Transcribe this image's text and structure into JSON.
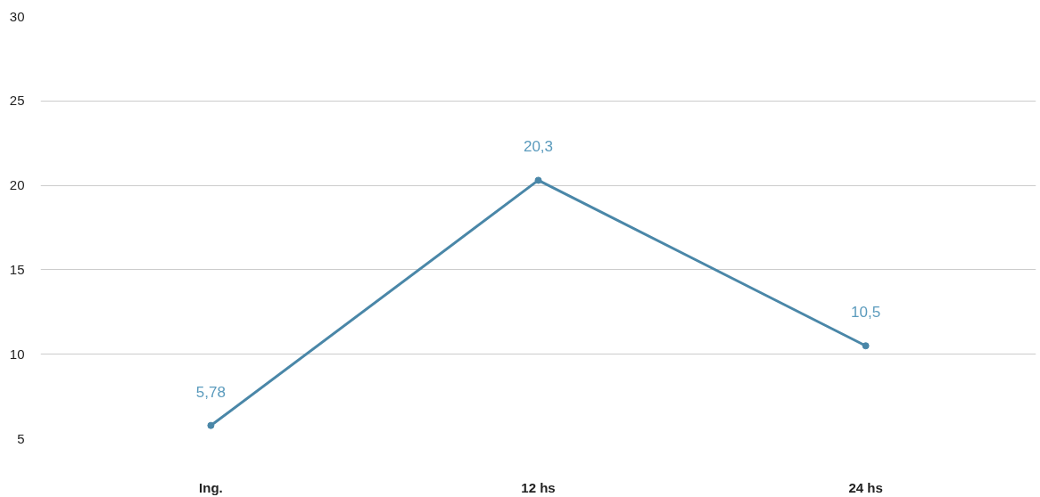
{
  "chart_data": {
    "type": "line",
    "categories": [
      "Ing.",
      "12 hs",
      "24 hs"
    ],
    "series": [
      {
        "color": "#4a87a8",
        "values": [
          5.78,
          20.3,
          10.5
        ],
        "value_labels": [
          "5,78",
          "20,3",
          "10,5"
        ]
      }
    ],
    "ylim": [
      5,
      30
    ],
    "yticks": [
      5,
      10,
      15,
      20,
      25,
      30
    ],
    "grid": "y",
    "marker": "circle",
    "line_style": "solid"
  }
}
